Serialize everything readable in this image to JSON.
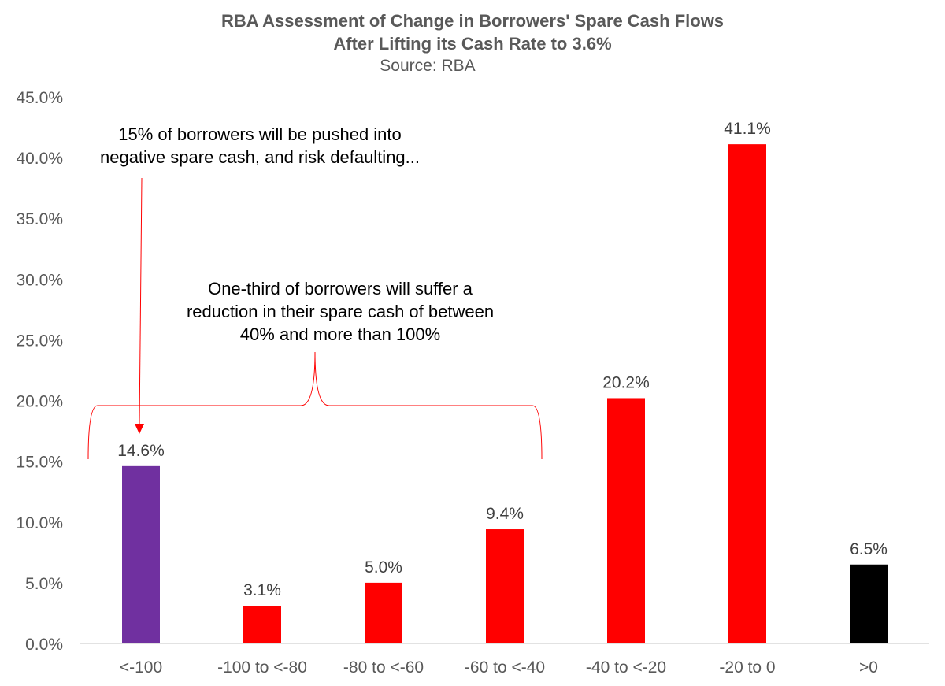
{
  "chart_data": {
    "type": "bar",
    "title": "RBA Assessment of Change in Borrowers' Spare Cash Flows",
    "subtitle": "After Lifting its Cash Rate to 3.6%",
    "source": "Source: RBA",
    "xlabel": "",
    "ylabel": "",
    "ylim": [
      0,
      45
    ],
    "yticks": [
      "0.0%",
      "5.0%",
      "10.0%",
      "15.0%",
      "20.0%",
      "25.0%",
      "30.0%",
      "35.0%",
      "40.0%",
      "45.0%"
    ],
    "categories": [
      "<-100",
      "-100 to <-80",
      "-80 to <-60",
      "-60 to <-40",
      "-40 to <-20",
      "-20 to 0",
      ">0"
    ],
    "values": [
      14.6,
      3.1,
      5.0,
      9.4,
      20.2,
      41.1,
      6.5
    ],
    "labels": [
      "14.6%",
      "3.1%",
      "5.0%",
      "9.4%",
      "20.2%",
      "41.1%",
      "6.5%"
    ],
    "bar_colors": [
      "#7030A0",
      "#FF0000",
      "#FF0000",
      "#FF0000",
      "#FF0000",
      "#FF0000",
      "#000000"
    ],
    "grid": false,
    "legend": "none",
    "annotations": [
      "15% of borrowers will be pushed into negative spare cash, and risk defaulting...",
      "One-third of borrowers will suffer a reduction in their spare cash of between 40% and more than 100%"
    ]
  }
}
